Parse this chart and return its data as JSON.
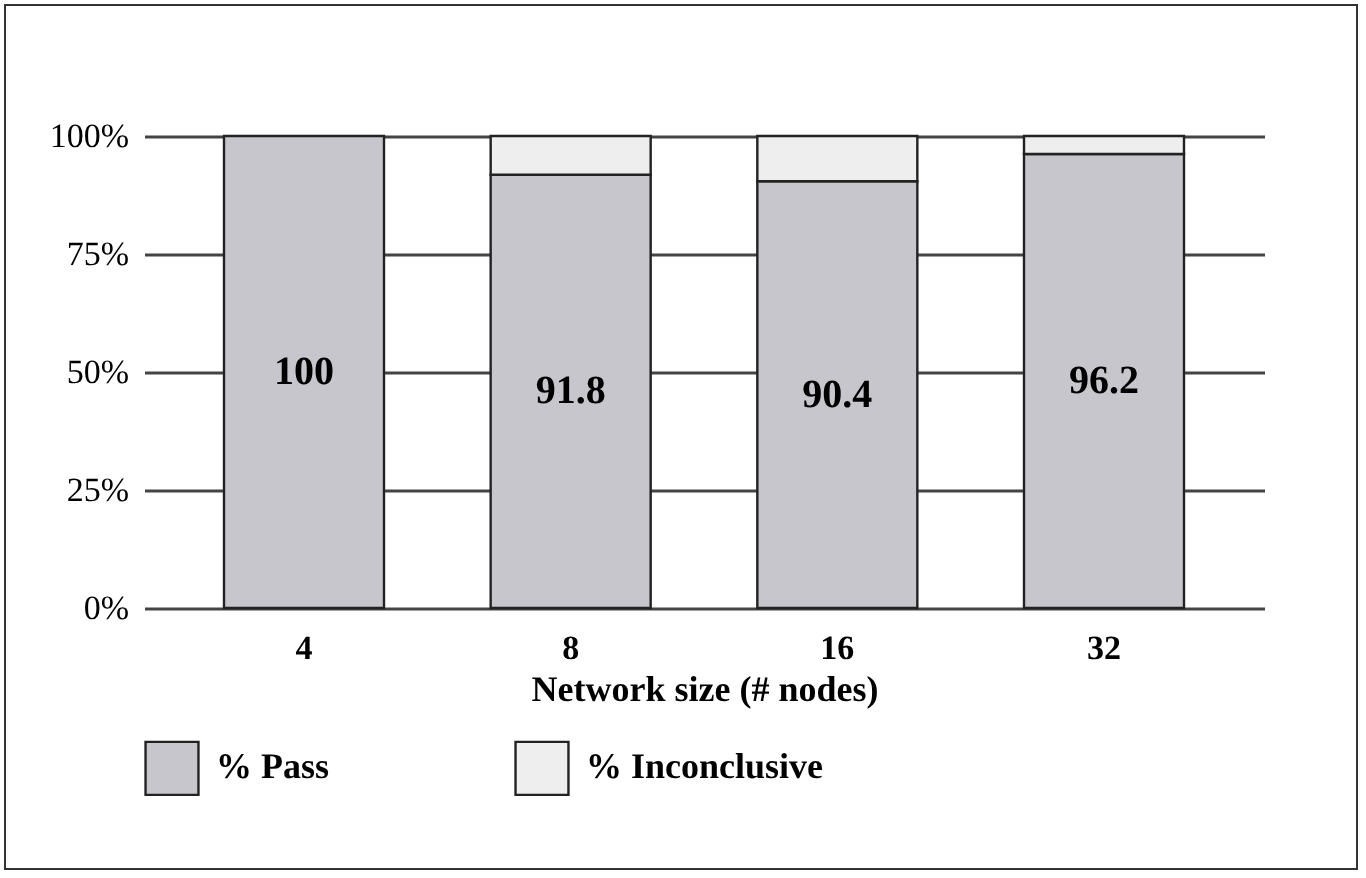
{
  "chart_data": {
    "type": "bar",
    "stacked": true,
    "xlabel": "Network size (# nodes)",
    "categories": [
      "4",
      "8",
      "16",
      "32"
    ],
    "series": [
      {
        "name": "% Pass",
        "color": "#c6c6cc",
        "values": [
          100,
          91.8,
          90.4,
          96.2
        ],
        "value_labels": [
          "100",
          "91.8",
          "90.4",
          "96.2"
        ]
      },
      {
        "name": "% Inconclusive",
        "color": "#eeeeee",
        "values": [
          null,
          8.2,
          9.6,
          3.8
        ]
      }
    ],
    "ylim": [
      0,
      100
    ],
    "yticks": [
      {
        "value": 0,
        "label": "0%"
      },
      {
        "value": 25,
        "label": "25%"
      },
      {
        "value": 50,
        "label": "50%"
      },
      {
        "value": 75,
        "label": "75%"
      },
      {
        "value": 100,
        "label": "100%"
      }
    ],
    "grid": "y",
    "legend": "bottom"
  }
}
